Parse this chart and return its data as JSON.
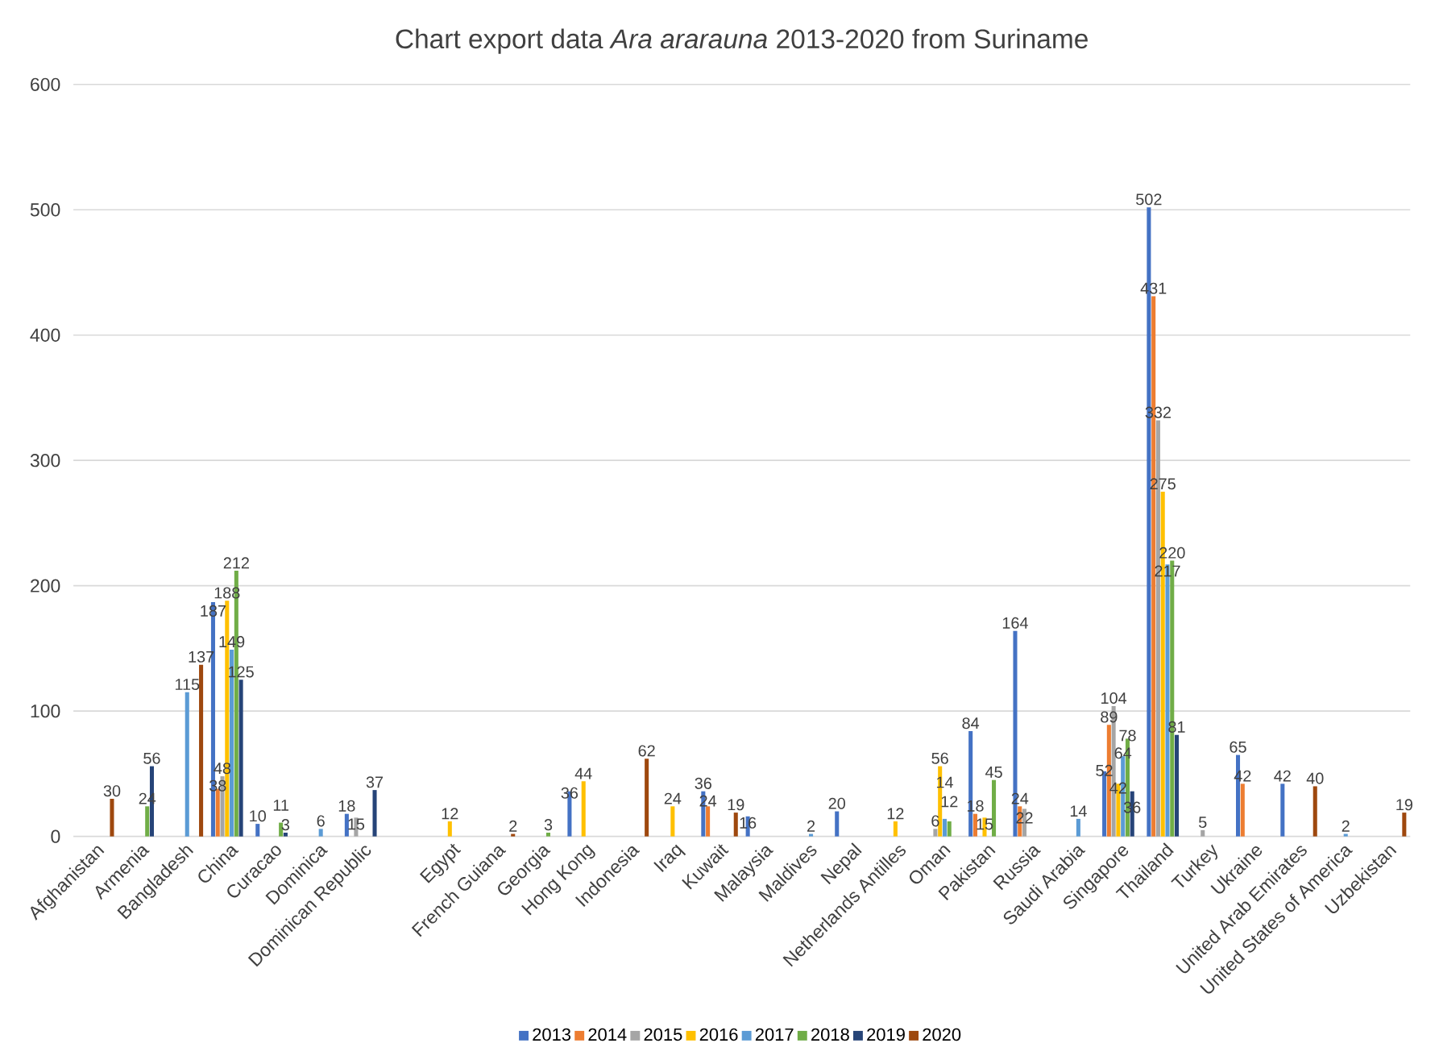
{
  "chart_data": {
    "type": "bar",
    "title": "Chart export data *Ara ararauna* 2013-2020 from Suriname",
    "categories": [
      "Afghanistan",
      "Armenia",
      "Bangladesh",
      "China",
      "Curacao",
      "Dominica",
      "Dominican Republic",
      null,
      "Egypt",
      "French Guiana",
      "Georgia",
      "Hong Kong",
      "Indonesia",
      "Iraq",
      "Kuwait",
      "Malaysia",
      "Maldives",
      "Nepal",
      "Netherlands Antilles",
      "Oman",
      "Pakistan",
      "Russia",
      "Saudi Arabia",
      "Singapore",
      "Thailand",
      "Turkey",
      "Ukraine",
      "United Arab Emirates",
      "United States of America",
      "Uzbekistan"
    ],
    "series": [
      {
        "name": "2013",
        "color": "#4472c4",
        "values": [
          null,
          null,
          null,
          187,
          10,
          null,
          18,
          null,
          null,
          null,
          null,
          36,
          null,
          null,
          36,
          16,
          null,
          20,
          null,
          null,
          84,
          164,
          null,
          52,
          502,
          null,
          65,
          42,
          null,
          null
        ]
      },
      {
        "name": "2014",
        "color": "#ed7d31",
        "values": [
          null,
          null,
          null,
          38,
          null,
          null,
          null,
          null,
          null,
          null,
          null,
          null,
          null,
          null,
          24,
          null,
          null,
          null,
          null,
          null,
          18,
          24,
          null,
          89,
          431,
          null,
          42,
          null,
          null,
          null
        ]
      },
      {
        "name": "2015",
        "color": "#a5a5a5",
        "values": [
          null,
          null,
          null,
          48,
          null,
          null,
          15,
          null,
          null,
          null,
          null,
          null,
          null,
          null,
          null,
          null,
          null,
          null,
          null,
          6,
          null,
          22,
          null,
          104,
          332,
          5,
          null,
          null,
          null,
          null
        ]
      },
      {
        "name": "2016",
        "color": "#ffc000",
        "values": [
          null,
          null,
          null,
          188,
          null,
          null,
          null,
          null,
          12,
          null,
          null,
          44,
          null,
          24,
          null,
          null,
          null,
          null,
          12,
          56,
          15,
          null,
          null,
          42,
          275,
          null,
          null,
          null,
          null,
          null
        ]
      },
      {
        "name": "2017",
        "color": "#5b9bd5",
        "values": [
          null,
          null,
          115,
          149,
          null,
          6,
          null,
          null,
          null,
          null,
          null,
          null,
          null,
          null,
          null,
          null,
          2,
          null,
          null,
          14,
          null,
          null,
          14,
          64,
          217,
          null,
          null,
          null,
          2,
          null
        ]
      },
      {
        "name": "2018",
        "color": "#70ad47",
        "values": [
          null,
          24,
          null,
          212,
          11,
          null,
          null,
          null,
          null,
          null,
          3,
          null,
          null,
          null,
          null,
          null,
          null,
          null,
          null,
          12,
          45,
          null,
          null,
          78,
          220,
          null,
          null,
          null,
          null,
          null
        ]
      },
      {
        "name": "2019",
        "color": "#264478",
        "values": [
          null,
          56,
          null,
          125,
          3,
          null,
          37,
          null,
          null,
          null,
          null,
          null,
          null,
          null,
          null,
          null,
          null,
          null,
          null,
          null,
          null,
          null,
          null,
          36,
          81,
          null,
          null,
          null,
          null,
          null
        ]
      },
      {
        "name": "2020",
        "color": "#9e480e",
        "values": [
          30,
          null,
          137,
          null,
          null,
          null,
          null,
          null,
          null,
          2,
          null,
          null,
          62,
          null,
          19,
          null,
          null,
          null,
          null,
          null,
          null,
          null,
          null,
          null,
          null,
          null,
          null,
          40,
          null,
          19
        ]
      }
    ],
    "ylim": [
      0,
      600
    ],
    "yticks": [
      0,
      100,
      200,
      300,
      400,
      500,
      600
    ],
    "grid": "y",
    "legend": "bottom",
    "data_labels": true
  }
}
